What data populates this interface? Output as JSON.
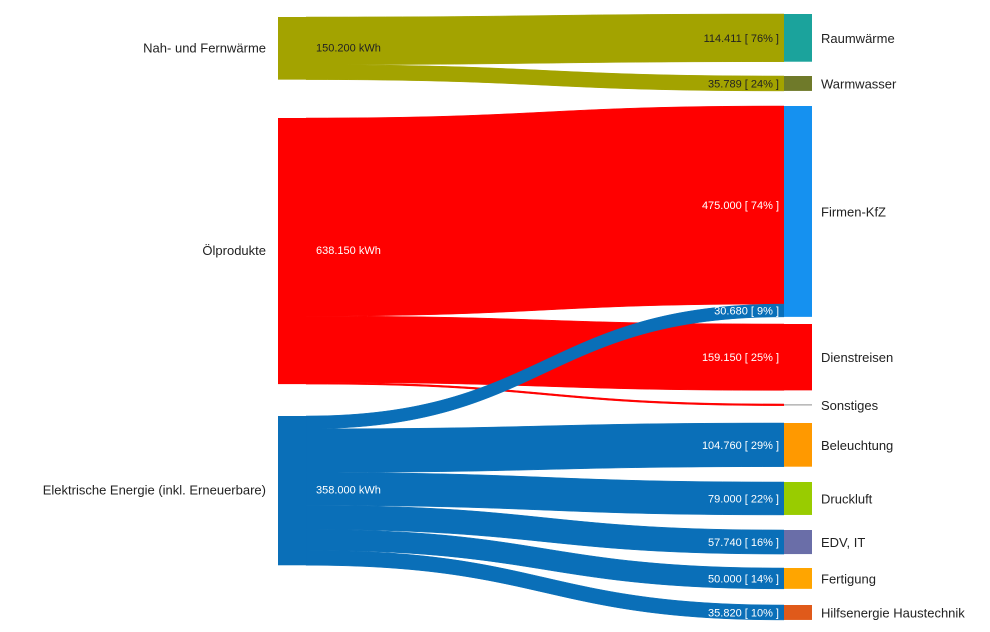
{
  "chart_data": {
    "type": "sankey",
    "unit": "kWh",
    "sources": [
      {
        "id": "fernwaerme",
        "name": "Nah- und Fernwärme",
        "value_label": "150.200 kWh",
        "value": 150200,
        "color": "#a3a300",
        "text_color": "#222222"
      },
      {
        "id": "oel",
        "name": "Ölprodukte",
        "value_label": "638.150 kWh",
        "value": 638150,
        "color": "#ff0000",
        "text_color": "#ffffff"
      },
      {
        "id": "strom",
        "name": "Elektrische Energie (inkl. Erneuerbare)",
        "value_label": "358.000 kWh",
        "value": 358000,
        "color": "#0a6fb8",
        "text_color": "#ffffff"
      }
    ],
    "targets": [
      {
        "id": "raumwaerme",
        "name": "Raumwärme",
        "color": "#1ba39c"
      },
      {
        "id": "warmwasser",
        "name": "Warmwasser",
        "color": "#6f7a2a"
      },
      {
        "id": "kfz",
        "name": "Firmen-KfZ",
        "color": "#1591f0"
      },
      {
        "id": "dienstreisen",
        "name": "Dienstreisen",
        "color": "#ff0000"
      },
      {
        "id": "sonstiges",
        "name": "Sonstiges",
        "color": "#bbbbbb"
      },
      {
        "id": "beleuchtung",
        "name": "Beleuchtung",
        "color": "#ff9900"
      },
      {
        "id": "druckluft",
        "name": "Druckluft",
        "color": "#99cc00"
      },
      {
        "id": "edv",
        "name": "EDV, IT",
        "color": "#6a6ea8"
      },
      {
        "id": "fertigung",
        "name": "Fertigung",
        "color": "#ffa500"
      },
      {
        "id": "hilfsenergie",
        "name": "Hilfsenergie Haustechnik",
        "color": "#e05a1a"
      }
    ],
    "flows": [
      {
        "from": "fernwaerme",
        "to": "raumwaerme",
        "value": 114411,
        "label": "114.411 [ 76% ]"
      },
      {
        "from": "fernwaerme",
        "to": "warmwasser",
        "value": 35789,
        "label": "35.789 [ 24% ]"
      },
      {
        "from": "oel",
        "to": "kfz",
        "value": 475000,
        "label": "475.000 [ 74% ]"
      },
      {
        "from": "oel",
        "to": "dienstreisen",
        "value": 159150,
        "label": "159.150 [ 25% ]"
      },
      {
        "from": "oel",
        "to": "sonstiges",
        "value": 4000,
        "label": ""
      },
      {
        "from": "strom",
        "to": "kfz",
        "value": 30680,
        "label": "30.680 [ 9% ]"
      },
      {
        "from": "strom",
        "to": "beleuchtung",
        "value": 104760,
        "label": "104.760 [ 29% ]"
      },
      {
        "from": "strom",
        "to": "druckluft",
        "value": 79000,
        "label": "79.000 [ 22% ]"
      },
      {
        "from": "strom",
        "to": "edv",
        "value": 57740,
        "label": "57.740 [ 16% ]"
      },
      {
        "from": "strom",
        "to": "fertigung",
        "value": 50000,
        "label": "50.000 [ 14% ]"
      },
      {
        "from": "strom",
        "to": "hilfsenergie",
        "value": 35820,
        "label": "35.820 [ 10% ]"
      }
    ]
  }
}
